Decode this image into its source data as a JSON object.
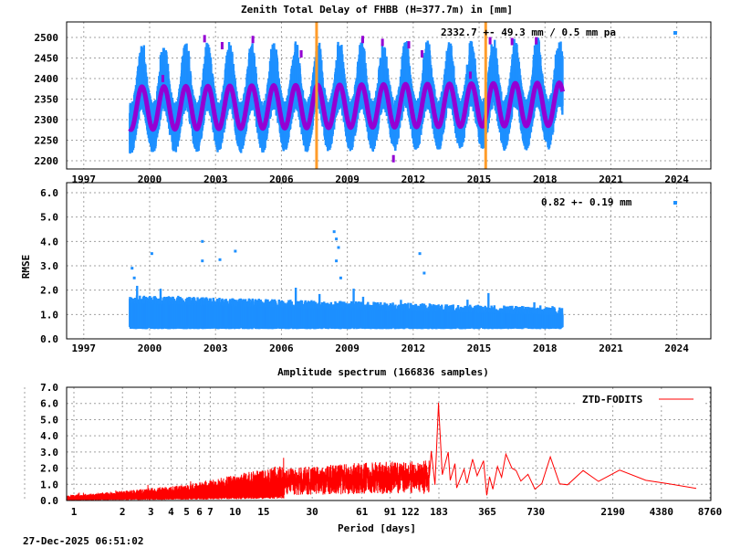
{
  "colors": {
    "samples": "#1e90ff",
    "model": "#9400d3",
    "event_marker": "#ff9c2a",
    "spectrum": "#ff0000",
    "grid": "#a0a0a0"
  },
  "timestamp": "27-Dec-2025 06:51:02",
  "chart_data": [
    {
      "type": "scatter",
      "title": "Zenith Total Delay of FHBB (H=377.7m) in [mm]",
      "xlabel": "",
      "ylabel": "",
      "xlim": [
        1996.1,
        2025.4
      ],
      "ylim": [
        2180,
        2538
      ],
      "grid": true,
      "legend_position": "top-right",
      "legend_text": "2332.7 +-  49.3 mm /  0.5 mm pa",
      "xticks": [
        "1997",
        "2000",
        "2003",
        "2006",
        "2009",
        "2012",
        "2015",
        "2018",
        "2021",
        "2024"
      ],
      "yticks": [
        "2200",
        "2250",
        "2300",
        "2350",
        "2400",
        "2450",
        "2500"
      ],
      "summary": {
        "mean_mm": 2332.7,
        "std_mm": 49.3,
        "trend_mm_per_year": 0.5
      },
      "data_span_years": [
        1999.1,
        2018.8
      ],
      "annual_model": {
        "mean": 2332.7,
        "amplitude": 52,
        "peak_fraction_of_year": 0.65
      },
      "sample_spread_mm": [
        2195,
        2500
      ],
      "event_markers_year": [
        2007.6,
        2015.3
      ],
      "outliers": [
        [
          2002.5,
          2497
        ],
        [
          2003.3,
          2480
        ],
        [
          2004.7,
          2495
        ],
        [
          2006.9,
          2460
        ],
        [
          2009.7,
          2495
        ],
        [
          2010.6,
          2488
        ],
        [
          2011.1,
          2205
        ],
        [
          2011.8,
          2482
        ],
        [
          2012.4,
          2460
        ],
        [
          2014.6,
          2408
        ],
        [
          2015.5,
          2492
        ],
        [
          2016.5,
          2490
        ],
        [
          2017.6,
          2492
        ],
        [
          2000.6,
          2400
        ]
      ]
    },
    {
      "type": "scatter",
      "title": "",
      "xlabel": "",
      "ylabel": "RMSE",
      "xlim": [
        1996.1,
        2025.4
      ],
      "ylim": [
        0,
        6.4
      ],
      "grid": true,
      "legend_position": "top-right",
      "legend_text": "0.82 +-  0.19 mm",
      "xticks": [
        "1997",
        "2000",
        "2003",
        "2006",
        "2009",
        "2012",
        "2015",
        "2018",
        "2021",
        "2024"
      ],
      "yticks": [
        "0.0",
        "1.0",
        "2.0",
        "3.0",
        "4.0",
        "5.0",
        "6.0"
      ],
      "summary": {
        "mean_mm": 0.82,
        "std_mm": 0.19
      },
      "outliers": [
        [
          1999.2,
          2.9
        ],
        [
          1999.3,
          2.5
        ],
        [
          2000.1,
          3.5
        ],
        [
          2002.4,
          4.0
        ],
        [
          2002.4,
          3.2
        ],
        [
          2003.2,
          3.25
        ],
        [
          2003.9,
          3.6
        ],
        [
          2008.4,
          4.4
        ],
        [
          2008.5,
          4.1
        ],
        [
          2008.6,
          3.75
        ],
        [
          2008.5,
          3.2
        ],
        [
          2008.7,
          2.5
        ],
        [
          2012.3,
          3.5
        ],
        [
          2012.5,
          2.7
        ]
      ]
    },
    {
      "type": "line",
      "title": "Amplitude spectrum (166836 samples)",
      "xlabel": "Period [days]",
      "ylabel": "",
      "xscale": "log",
      "xlim": [
        0.9,
        8760
      ],
      "ylim": [
        0,
        7
      ],
      "grid": true,
      "legend_position": "top-right",
      "series": [
        {
          "name": "ZTD-FODITS"
        }
      ],
      "xticks": [
        "1",
        "2",
        "3",
        "4",
        "5",
        "6",
        "7",
        "10",
        "15",
        "30",
        "61",
        "91",
        "122",
        "183",
        "365",
        "730",
        "2190",
        "4380",
        "8760"
      ],
      "yticks": [
        "0.0",
        "1.0",
        "2.0",
        "3.0",
        "4.0",
        "5.0",
        "6.0",
        "7.0"
      ],
      "short_period_amplitude_envelope": [
        [
          1,
          0.35
        ],
        [
          2,
          0.6
        ],
        [
          5,
          1.0
        ],
        [
          10,
          1.6
        ],
        [
          20,
          2.2
        ],
        [
          60,
          2.6
        ],
        [
          160,
          2.8
        ]
      ],
      "points": [
        [
          164,
          3.06
        ],
        [
          173,
          0.97
        ],
        [
          182,
          6.05
        ],
        [
          183,
          5.5
        ],
        [
          192,
          1.6
        ],
        [
          209,
          3.0
        ],
        [
          215,
          1.25
        ],
        [
          230,
          2.28
        ],
        [
          236,
          0.78
        ],
        [
          262,
          1.94
        ],
        [
          273,
          1.06
        ],
        [
          296,
          2.56
        ],
        [
          316,
          1.53
        ],
        [
          346,
          2.46
        ],
        [
          362,
          0.32
        ],
        [
          377,
          1.47
        ],
        [
          395,
          0.7
        ],
        [
          422,
          2.1
        ],
        [
          448,
          1.44
        ],
        [
          476,
          2.87
        ],
        [
          519,
          2.0
        ],
        [
          551,
          1.85
        ],
        [
          589,
          1.2
        ],
        [
          652,
          1.62
        ],
        [
          720,
          0.7
        ],
        [
          796,
          1.06
        ],
        [
          897,
          2.7
        ],
        [
          1025,
          1.03
        ],
        [
          1148,
          0.97
        ],
        [
          1432,
          1.85
        ],
        [
          1786,
          1.18
        ],
        [
          2411,
          1.88
        ],
        [
          3505,
          1.25
        ],
        [
          4890,
          1.03
        ],
        [
          7200,
          0.75
        ]
      ]
    }
  ]
}
